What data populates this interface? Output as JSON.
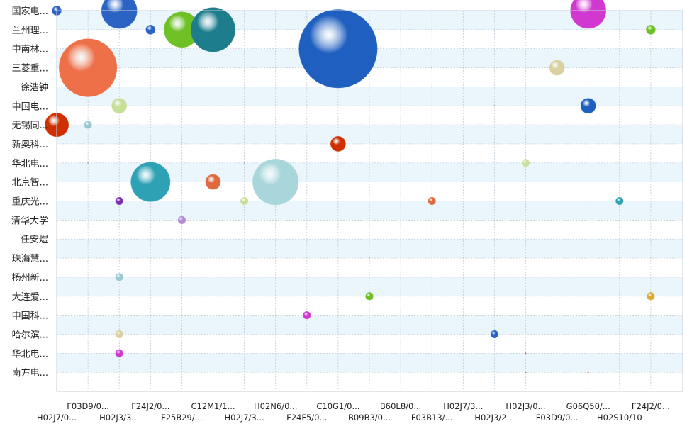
{
  "chart_data": {
    "type": "scatter",
    "subtype": "bubble",
    "grid": true,
    "title": "",
    "xlabel": "",
    "ylabel": "",
    "x_categories": [
      "H02J7/0...",
      "F03D9/0...",
      "H02J3/3...",
      "F24J2/0...",
      "F25B29/...",
      "C12M1/1...",
      "H02J7/3...",
      "H02N6/0...",
      "F24F5/0...",
      "C10G1/0...",
      "B09B3/0...",
      "B60L8/0...",
      "F03B13/...",
      "H02J7/3...",
      "H02J3/2...",
      "H02J3/0...",
      "F03D9/0...",
      "G06Q50/...",
      "H02S10/10",
      "F24J2/0..."
    ],
    "y_categories": [
      "国家电...",
      "兰州理...",
      "中南林...",
      "三菱重...",
      "徐浩钟",
      "中国电...",
      "无锡同...",
      "新奥科...",
      "华北电...",
      "北京智...",
      "重庆光...",
      "清华大学",
      "任安煜",
      "珠海慧...",
      "扬州新...",
      "大连爱...",
      "中国科...",
      "哈尔滨...",
      "华北电...",
      "南方电..."
    ],
    "bubbles": [
      {
        "x": 0,
        "y": 0,
        "size": 3,
        "color": "#2a63c4"
      },
      {
        "x": 2,
        "y": 0,
        "size": 45,
        "color": "#2a63c4"
      },
      {
        "x": 17,
        "y": 0,
        "size": 45,
        "color": "#d038d0"
      },
      {
        "x": 3,
        "y": 1,
        "size": 3,
        "color": "#2a63c4"
      },
      {
        "x": 4,
        "y": 1,
        "size": 45,
        "color": "#6ec024"
      },
      {
        "x": 5,
        "y": 1,
        "size": 70,
        "color": "#1e7d8c"
      },
      {
        "x": 19,
        "y": 1,
        "size": 3,
        "color": "#6ec024"
      },
      {
        "x": 9,
        "y": 2,
        "size": 220,
        "color": "#1f5fbf"
      },
      {
        "x": 1,
        "y": 3,
        "size": 120,
        "color": "#ee7048"
      },
      {
        "x": 16,
        "y": 3,
        "size": 8,
        "color": "#dccfa0"
      },
      {
        "x": 12,
        "y": 3,
        "size": 0.1,
        "color": "#9aa7b8"
      },
      {
        "x": 12,
        "y": 4,
        "size": 0.1,
        "color": "#9aa7b8"
      },
      {
        "x": 2,
        "y": 5,
        "size": 8,
        "color": "#c8df98"
      },
      {
        "x": 17,
        "y": 5,
        "size": 8,
        "color": "#1f5fbf"
      },
      {
        "x": 14,
        "y": 5,
        "size": 0.1,
        "color": "#9aa7b8"
      },
      {
        "x": 0,
        "y": 6,
        "size": 20,
        "color": "#cf3000"
      },
      {
        "x": 1,
        "y": 6,
        "size": 2,
        "color": "#9cc8cf"
      },
      {
        "x": 9,
        "y": 7,
        "size": 8,
        "color": "#cf3000"
      },
      {
        "x": 1,
        "y": 8,
        "size": 0.1,
        "color": "#9aa7b8"
      },
      {
        "x": 6,
        "y": 8,
        "size": 0.1,
        "color": "#9aa7b8"
      },
      {
        "x": 15,
        "y": 8,
        "size": 2,
        "color": "#c8df98"
      },
      {
        "x": 3,
        "y": 9,
        "size": 55,
        "color": "#2ea2b4"
      },
      {
        "x": 5,
        "y": 9,
        "size": 8,
        "color": "#e06a40"
      },
      {
        "x": 7,
        "y": 9,
        "size": 75,
        "color": "#a8d6db"
      },
      {
        "x": 2,
        "y": 10,
        "size": 2,
        "color": "#7a30b0"
      },
      {
        "x": 6,
        "y": 10,
        "size": 2,
        "color": "#c8df98"
      },
      {
        "x": 12,
        "y": 10,
        "size": 2,
        "color": "#e06a40"
      },
      {
        "x": 18,
        "y": 10,
        "size": 2,
        "color": "#2ea2b4"
      },
      {
        "x": 4,
        "y": 11,
        "size": 2,
        "color": "#b08ad8"
      },
      {
        "x": 10,
        "y": 13,
        "size": 0.1,
        "color": "#9aa7b8"
      },
      {
        "x": 2,
        "y": 14,
        "size": 2,
        "color": "#9cc8cf"
      },
      {
        "x": 10,
        "y": 15,
        "size": 2,
        "color": "#6ec024"
      },
      {
        "x": 19,
        "y": 15,
        "size": 2,
        "color": "#e0a830"
      },
      {
        "x": 8,
        "y": 16,
        "size": 2,
        "color": "#d038d0"
      },
      {
        "x": 10,
        "y": 16,
        "size": 0.1,
        "color": "#dccfa0"
      },
      {
        "x": 2,
        "y": 17,
        "size": 2,
        "color": "#dccfa0"
      },
      {
        "x": 14,
        "y": 17,
        "size": 2,
        "color": "#2a63c4"
      },
      {
        "x": 2,
        "y": 18,
        "size": 2,
        "color": "#d038d0"
      },
      {
        "x": 15,
        "y": 18,
        "size": 0.1,
        "color": "#cf6040"
      },
      {
        "x": 15,
        "y": 19,
        "size": 0.1,
        "color": "#cf6040"
      },
      {
        "x": 17,
        "y": 19,
        "size": 0.1,
        "color": "#cf6040"
      }
    ]
  }
}
